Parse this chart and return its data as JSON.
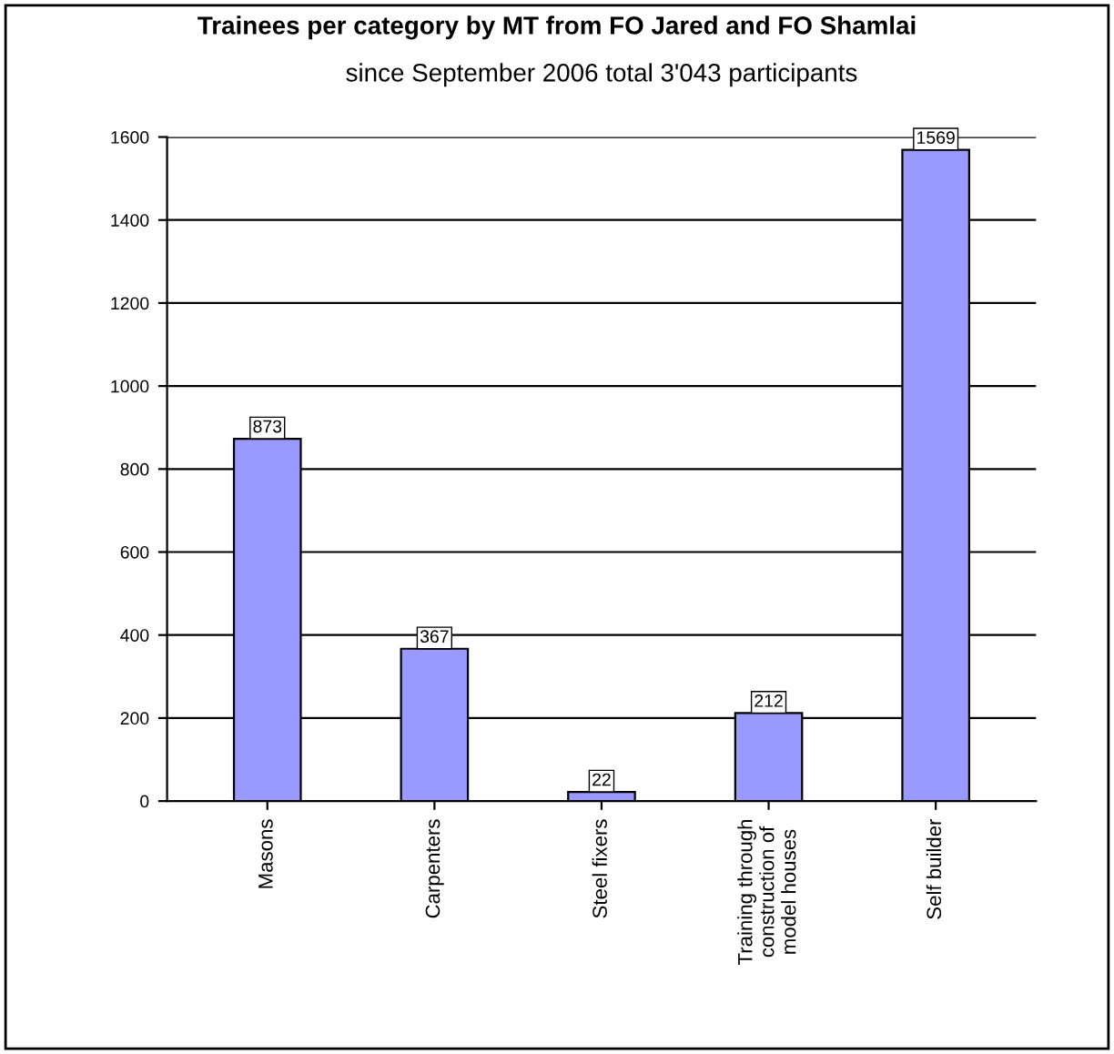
{
  "chart_data": {
    "type": "bar",
    "title": "Trainees per category by MT from FO Jared and FO Shamlai",
    "subtitle": "since September 2006 total 3'043 participants",
    "categories": [
      "Masons",
      "Carpenters",
      "Steel fixers",
      "Training through\nconstruction of\nmodel houses",
      "Self builder"
    ],
    "values": [
      873,
      367,
      22,
      212,
      1569
    ],
    "color": "#9999ff",
    "ylim": [
      0,
      1600
    ],
    "yticks": [
      0,
      200,
      400,
      600,
      800,
      1000,
      1200,
      1400,
      1600
    ],
    "grid": "y",
    "data_labels": true
  }
}
